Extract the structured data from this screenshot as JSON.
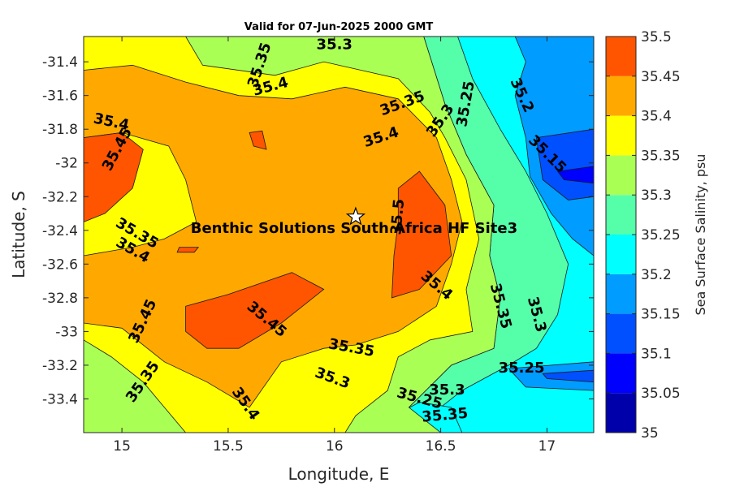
{
  "chart_data": {
    "type": "contour",
    "title": "Valid for 07-Jun-2025 2000 GMT",
    "xlabel": "Longitude, E",
    "ylabel": "Latitude, S",
    "xlim": [
      14.82,
      17.22
    ],
    "ylim": [
      -33.6,
      -31.25
    ],
    "xticks": [
      "15",
      "15.5",
      "16",
      "16.5",
      "17"
    ],
    "xtick_values": [
      15,
      15.5,
      16,
      16.5,
      17
    ],
    "yticks": [
      "-31.4",
      "-31.6",
      "-31.8",
      "-32",
      "-32.2",
      "-32.4",
      "-32.6",
      "-32.8",
      "-33",
      "-33.2",
      "-33.4"
    ],
    "ytick_values": [
      -31.4,
      -31.6,
      -31.8,
      -32,
      -32.2,
      -32.4,
      -32.6,
      -32.8,
      -33,
      -33.2,
      -33.4
    ],
    "colorbar": {
      "label": "Sea Surface Salinity, psu",
      "levels": [
        "35",
        "35.05",
        "35.1",
        "35.15",
        "35.2",
        "35.25",
        "35.3",
        "35.35",
        "35.4",
        "35.45",
        "35.5"
      ],
      "colors": [
        "#0000aa",
        "#0000ff",
        "#0050ff",
        "#009cff",
        "#00ffff",
        "#55ffaa",
        "#aaff55",
        "#ffff00",
        "#ffa900",
        "#ff5500"
      ]
    },
    "site": {
      "name": "Benthic Solutions South Africa HF Site3",
      "lon": 16.1,
      "lat": -32.32
    },
    "regions": [
      {
        "level": 35.25,
        "points": [
          [
            16.42,
            -31.25
          ],
          [
            17.22,
            -31.25
          ],
          [
            17.22,
            -33.6
          ],
          [
            16.5,
            -33.6
          ],
          [
            16.35,
            -33.45
          ],
          [
            16.55,
            -33.2
          ],
          [
            16.75,
            -33.1
          ],
          [
            16.78,
            -32.8
          ],
          [
            16.73,
            -32.55
          ],
          [
            16.75,
            -32.25
          ],
          [
            16.62,
            -31.95
          ],
          [
            16.52,
            -31.65
          ]
        ]
      },
      {
        "level": 35.2,
        "points": [
          [
            16.58,
            -31.25
          ],
          [
            17.22,
            -31.25
          ],
          [
            17.22,
            -33.6
          ],
          [
            16.6,
            -33.6
          ],
          [
            16.45,
            -33.5
          ],
          [
            16.6,
            -33.35
          ],
          [
            16.82,
            -33.2
          ],
          [
            16.95,
            -33.1
          ],
          [
            17.05,
            -32.9
          ],
          [
            17.1,
            -32.6
          ],
          [
            17.0,
            -32.3
          ],
          [
            16.9,
            -32.05
          ],
          [
            16.78,
            -31.8
          ],
          [
            16.65,
            -31.5
          ]
        ]
      },
      {
        "level": 35.2,
        "points": [
          [
            16.25,
            -33.6
          ],
          [
            16.6,
            -33.6
          ],
          [
            16.55,
            -33.45
          ],
          [
            16.4,
            -33.42
          ],
          [
            16.28,
            -33.5
          ]
        ]
      },
      {
        "level": 35.15,
        "points": [
          [
            16.85,
            -31.25
          ],
          [
            17.22,
            -31.25
          ],
          [
            17.22,
            -32.55
          ],
          [
            17.12,
            -32.45
          ],
          [
            17.02,
            -32.3
          ],
          [
            16.92,
            -32.08
          ],
          [
            16.9,
            -31.85
          ],
          [
            16.85,
            -31.6
          ],
          [
            16.9,
            -31.4
          ]
        ]
      },
      {
        "level": 35.15,
        "points": [
          [
            16.82,
            -33.22
          ],
          [
            17.22,
            -33.18
          ],
          [
            17.22,
            -33.35
          ],
          [
            16.9,
            -33.33
          ]
        ]
      },
      {
        "level": 35.1,
        "points": [
          [
            16.95,
            -31.85
          ],
          [
            17.22,
            -31.8
          ],
          [
            17.22,
            -32.2
          ],
          [
            17.1,
            -32.22
          ],
          [
            16.98,
            -32.1
          ]
        ]
      },
      {
        "level": 35.05,
        "points": [
          [
            17.05,
            -32.05
          ],
          [
            17.22,
            -32.02
          ],
          [
            17.22,
            -32.12
          ],
          [
            17.08,
            -32.1
          ]
        ]
      },
      {
        "level": 35.1,
        "points": [
          [
            16.98,
            -33.25
          ],
          [
            17.22,
            -33.23
          ],
          [
            17.22,
            -33.3
          ],
          [
            17.0,
            -33.28
          ]
        ]
      },
      {
        "level": 35.3,
        "points": [
          [
            14.82,
            -31.25
          ],
          [
            16.42,
            -31.25
          ],
          [
            16.52,
            -31.65
          ],
          [
            16.62,
            -31.95
          ],
          [
            16.75,
            -32.25
          ],
          [
            16.73,
            -32.55
          ],
          [
            16.78,
            -32.8
          ],
          [
            16.75,
            -33.1
          ],
          [
            16.55,
            -33.2
          ],
          [
            16.35,
            -33.45
          ],
          [
            16.5,
            -33.6
          ],
          [
            14.82,
            -33.6
          ]
        ]
      },
      {
        "level": 35.35,
        "points": [
          [
            14.82,
            -31.25
          ],
          [
            15.3,
            -31.25
          ],
          [
            15.38,
            -31.42
          ],
          [
            15.72,
            -31.48
          ],
          [
            15.95,
            -31.4
          ],
          [
            16.3,
            -31.5
          ],
          [
            16.45,
            -31.7
          ],
          [
            16.52,
            -31.85
          ],
          [
            16.62,
            -32.1
          ],
          [
            16.68,
            -32.45
          ],
          [
            16.62,
            -32.75
          ],
          [
            16.65,
            -33.0
          ],
          [
            16.45,
            -33.05
          ],
          [
            16.3,
            -33.15
          ],
          [
            16.25,
            -33.35
          ],
          [
            16.1,
            -33.5
          ],
          [
            16.05,
            -33.6
          ],
          [
            15.3,
            -33.6
          ],
          [
            15.2,
            -33.45
          ],
          [
            15.1,
            -33.3
          ],
          [
            14.95,
            -33.15
          ],
          [
            14.82,
            -33.05
          ]
        ]
      },
      {
        "level": 35.4,
        "points": [
          [
            14.82,
            -31.45
          ],
          [
            15.05,
            -31.42
          ],
          [
            15.3,
            -31.52
          ],
          [
            15.55,
            -31.6
          ],
          [
            15.8,
            -31.62
          ],
          [
            16.05,
            -31.55
          ],
          [
            16.3,
            -31.62
          ],
          [
            16.48,
            -31.85
          ],
          [
            16.55,
            -32.1
          ],
          [
            16.6,
            -32.35
          ],
          [
            16.55,
            -32.6
          ],
          [
            16.48,
            -32.85
          ],
          [
            16.3,
            -33.0
          ],
          [
            16.1,
            -33.08
          ],
          [
            15.95,
            -33.1
          ],
          [
            15.75,
            -33.18
          ],
          [
            15.6,
            -33.45
          ],
          [
            15.4,
            -33.3
          ],
          [
            15.2,
            -33.18
          ],
          [
            15.0,
            -32.98
          ],
          [
            14.82,
            -32.95
          ],
          [
            14.82,
            -32.55
          ],
          [
            15.05,
            -32.5
          ],
          [
            15.2,
            -32.45
          ],
          [
            15.35,
            -32.35
          ],
          [
            15.3,
            -32.1
          ],
          [
            15.22,
            -31.9
          ],
          [
            15.0,
            -31.82
          ],
          [
            14.82,
            -31.85
          ]
        ]
      },
      {
        "level": 35.45,
        "points": [
          [
            14.82,
            -31.85
          ],
          [
            15.0,
            -31.82
          ],
          [
            15.1,
            -31.92
          ],
          [
            15.05,
            -32.15
          ],
          [
            14.92,
            -32.3
          ],
          [
            14.82,
            -32.35
          ]
        ]
      },
      {
        "level": 35.45,
        "points": [
          [
            15.3,
            -32.85
          ],
          [
            15.5,
            -32.78
          ],
          [
            15.8,
            -32.65
          ],
          [
            15.95,
            -32.75
          ],
          [
            15.75,
            -32.95
          ],
          [
            15.55,
            -33.1
          ],
          [
            15.4,
            -33.1
          ],
          [
            15.3,
            -33.0
          ]
        ]
      },
      {
        "level": 35.45,
        "points": [
          [
            16.3,
            -32.15
          ],
          [
            16.4,
            -32.05
          ],
          [
            16.52,
            -32.25
          ],
          [
            16.55,
            -32.55
          ],
          [
            16.4,
            -32.75
          ],
          [
            16.27,
            -32.8
          ],
          [
            16.28,
            -32.55
          ],
          [
            16.3,
            -32.35
          ]
        ]
      },
      {
        "level": 35.45,
        "points": [
          [
            15.6,
            -31.82
          ],
          [
            15.66,
            -31.81
          ],
          [
            15.68,
            -31.92
          ],
          [
            15.62,
            -31.9
          ]
        ]
      },
      {
        "level": 35.45,
        "points": [
          [
            15.27,
            -32.5
          ],
          [
            15.36,
            -32.5
          ],
          [
            15.34,
            -32.53
          ],
          [
            15.26,
            -32.53
          ]
        ]
      }
    ],
    "contour_labels": [
      {
        "text": "35.3",
        "lon": 16.0,
        "lat": -31.3,
        "angle": 0
      },
      {
        "text": "35.35",
        "lon": 15.65,
        "lat": -31.42,
        "angle": 72
      },
      {
        "text": "35.4",
        "lon": 15.7,
        "lat": -31.55,
        "angle": 15
      },
      {
        "text": "35.4",
        "lon": 14.95,
        "lat": -31.76,
        "angle": -12
      },
      {
        "text": "35.45",
        "lon": 14.98,
        "lat": -31.92,
        "angle": 62
      },
      {
        "text": "35.35",
        "lon": 16.32,
        "lat": -31.65,
        "angle": 20
      },
      {
        "text": "35.4",
        "lon": 16.22,
        "lat": -31.85,
        "angle": 18
      },
      {
        "text": "35.3",
        "lon": 16.5,
        "lat": -31.75,
        "angle": 55
      },
      {
        "text": "35.25",
        "lon": 16.62,
        "lat": -31.65,
        "angle": 80
      },
      {
        "text": "35.2",
        "lon": 16.88,
        "lat": -31.6,
        "angle": -65
      },
      {
        "text": "35.15",
        "lon": 17.0,
        "lat": -31.95,
        "angle": -45
      },
      {
        "text": "35.35",
        "lon": 15.07,
        "lat": -32.42,
        "angle": -30
      },
      {
        "text": "35.4",
        "lon": 15.05,
        "lat": -32.52,
        "angle": -30
      },
      {
        "text": "35.5",
        "lon": 16.3,
        "lat": -32.32,
        "angle": 85
      },
      {
        "text": "35.45",
        "lon": 15.1,
        "lat": -32.94,
        "angle": 65
      },
      {
        "text": "35.45",
        "lon": 15.68,
        "lat": -32.93,
        "angle": -40
      },
      {
        "text": "35.4",
        "lon": 16.48,
        "lat": -32.73,
        "angle": -40
      },
      {
        "text": "35.35",
        "lon": 16.78,
        "lat": -32.85,
        "angle": -75
      },
      {
        "text": "35.3",
        "lon": 16.95,
        "lat": -32.9,
        "angle": -75
      },
      {
        "text": "35.35",
        "lon": 16.08,
        "lat": -33.1,
        "angle": -10
      },
      {
        "text": "35.3",
        "lon": 15.99,
        "lat": -33.28,
        "angle": -20
      },
      {
        "text": "35.25",
        "lon": 16.88,
        "lat": -33.22,
        "angle": 0
      },
      {
        "text": "35.35",
        "lon": 15.1,
        "lat": -33.3,
        "angle": 55
      },
      {
        "text": "35.4",
        "lon": 15.58,
        "lat": -33.43,
        "angle": -55
      },
      {
        "text": "35.25",
        "lon": 16.4,
        "lat": -33.4,
        "angle": -15
      },
      {
        "text": "35.3",
        "lon": 16.53,
        "lat": -33.35,
        "angle": 0
      },
      {
        "text": "35.35",
        "lon": 16.52,
        "lat": -33.5,
        "angle": 5
      }
    ]
  }
}
